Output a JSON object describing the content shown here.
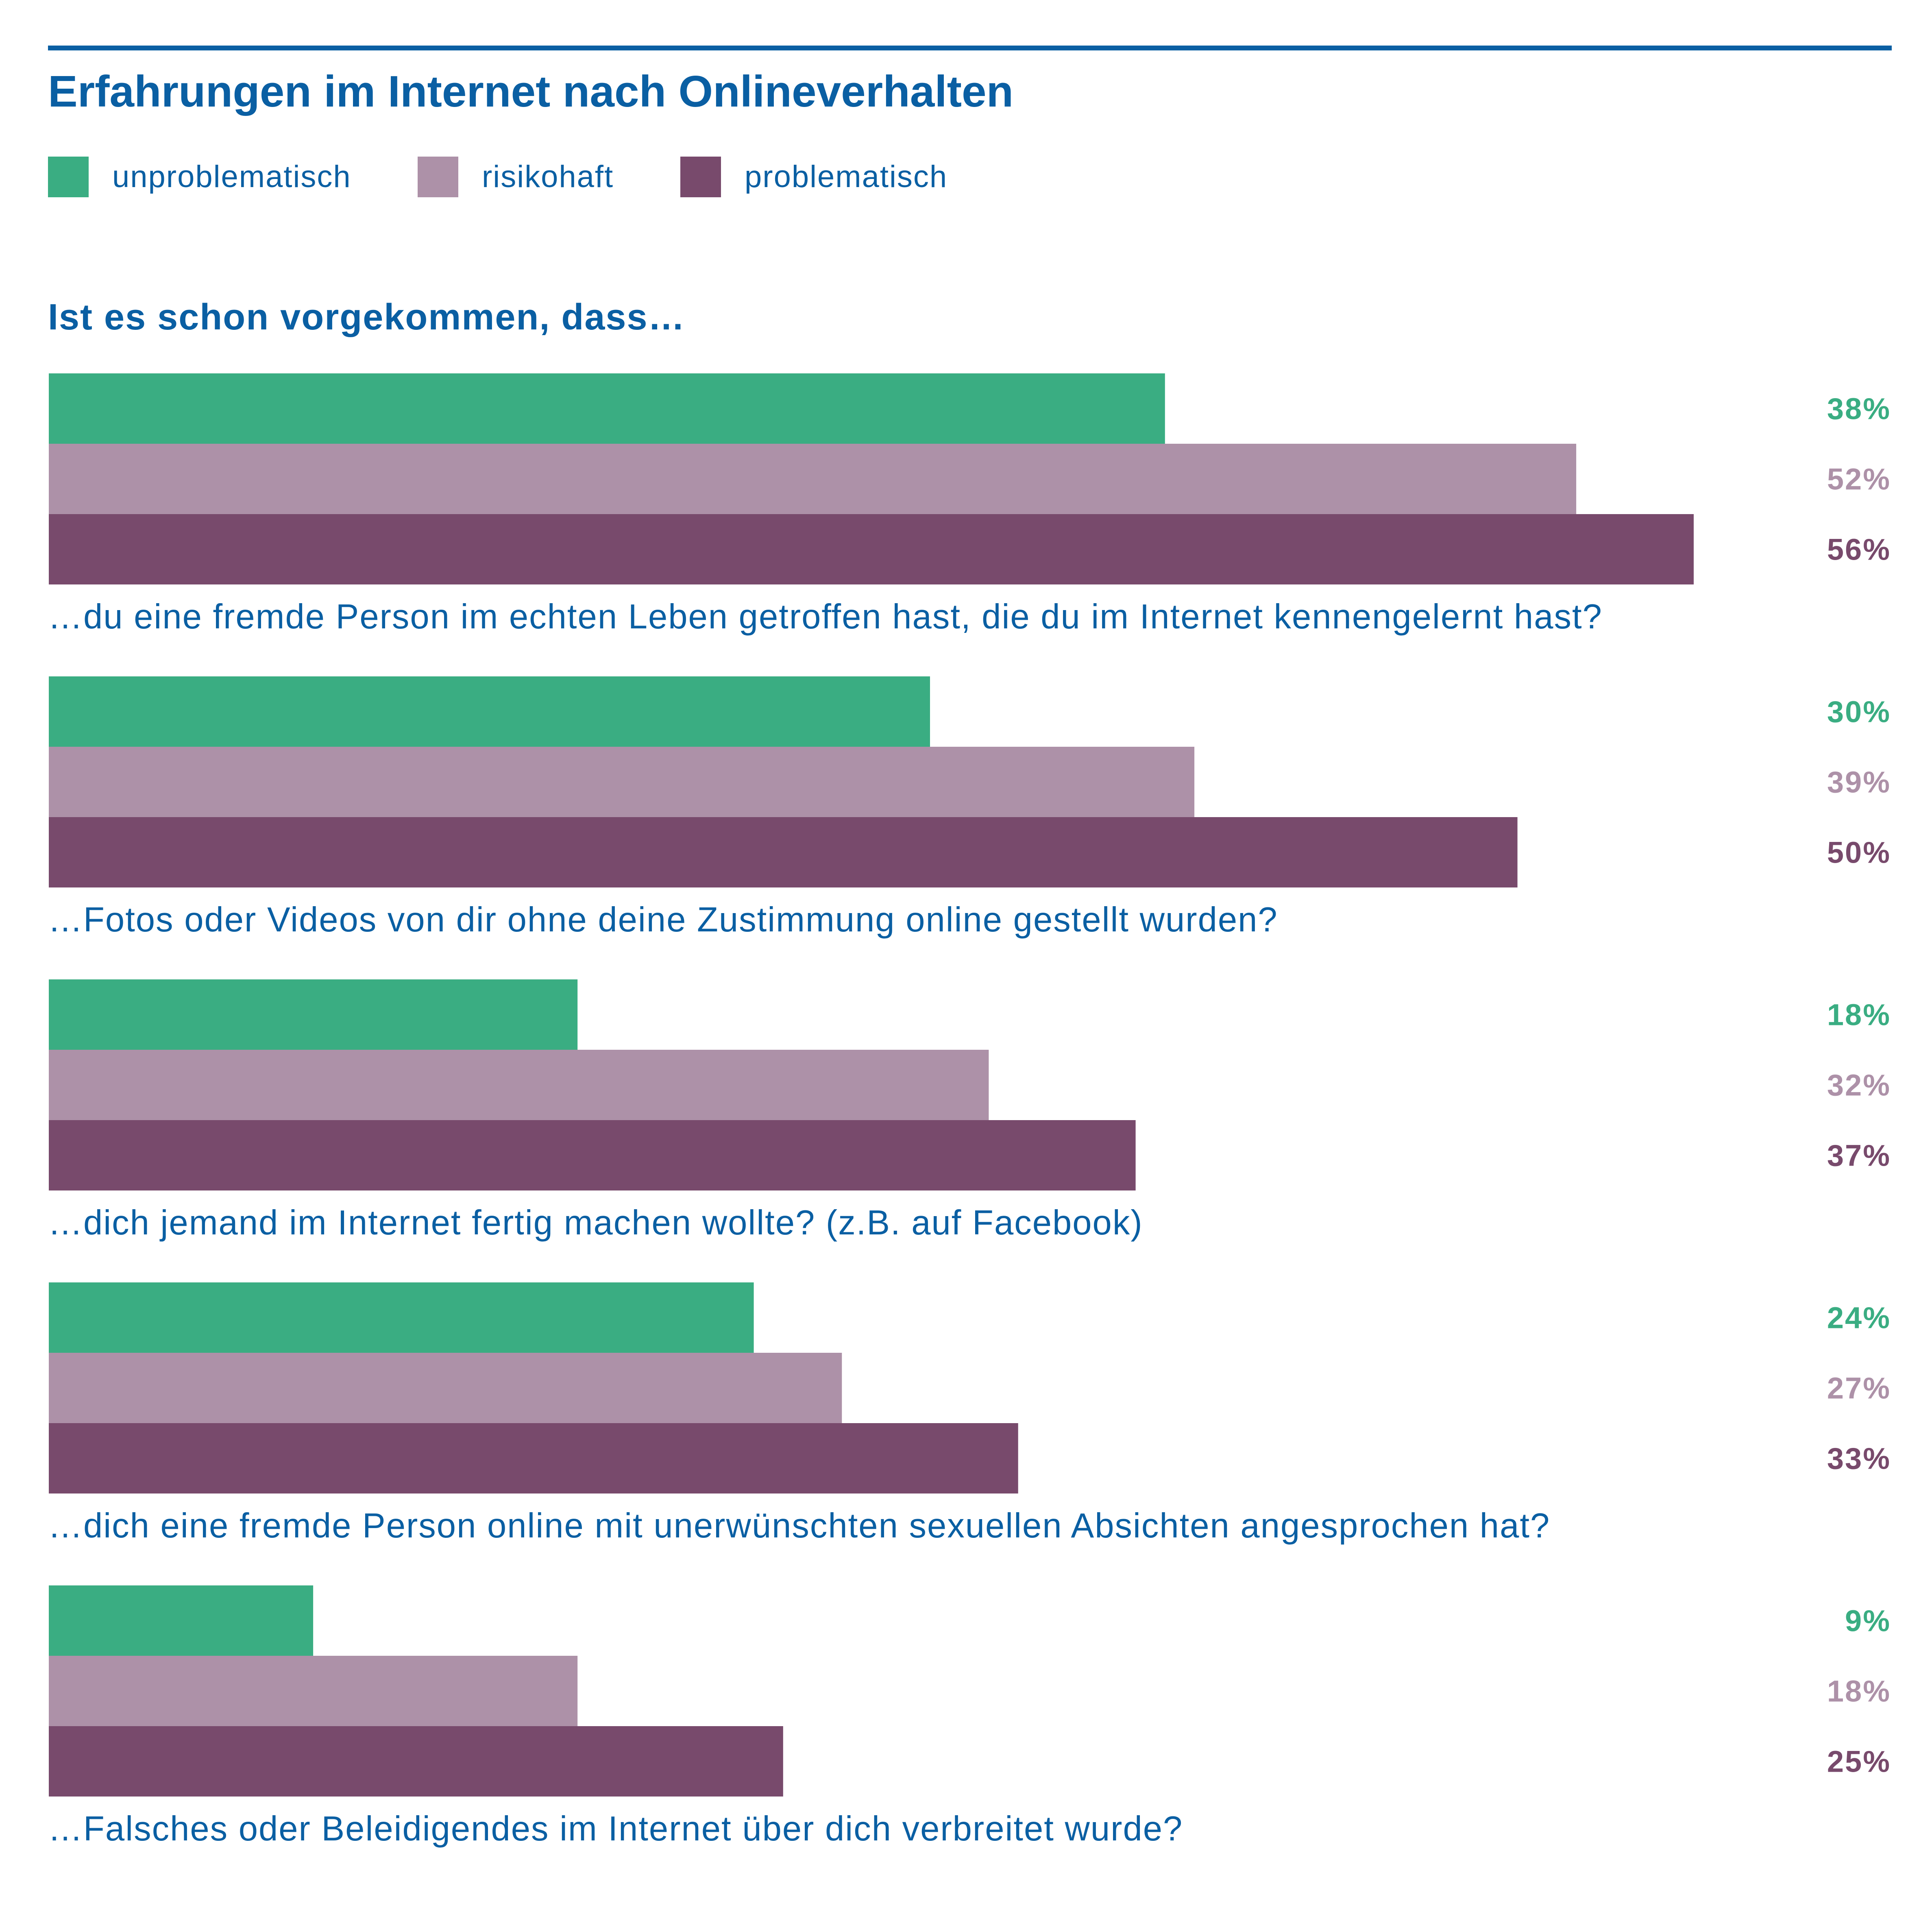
{
  "colors": {
    "accent": "#0a5fa3",
    "unproblematisch": "#3aad82",
    "risikohaft": "#ad91a8",
    "problematisch": "#784a6c"
  },
  "title": "Erfahrungen im Internet nach Onlineverhalten",
  "subtitle": "Ist es schon vorgekommen, dass…",
  "legend": [
    {
      "label": "unproblematisch",
      "color_key": "unproblematisch"
    },
    {
      "label": "risikohaft",
      "color_key": "risikohaft"
    },
    {
      "label": "problematisch",
      "color_key": "problematisch"
    }
  ],
  "chart_data": {
    "type": "bar",
    "orientation": "horizontal",
    "unit": "%",
    "xlim": [
      0,
      100
    ],
    "grid": false,
    "legend_position": "top-left",
    "title": "Erfahrungen im Internet nach Onlineverhalten",
    "subtitle": "Ist es schon vorgekommen, dass…",
    "categories": [
      "…du eine fremde Person im echten Leben getroffen hast, die du im Internet kennengelernt hast?",
      "…Fotos oder Videos von dir ohne deine Zustimmung online gestellt wurden?",
      "…dich jemand im Internet fertig machen wollte? (z.B. auf Facebook)",
      "…dich eine fremde Person online mit unerwünschten sexuellen Absichten angesprochen hat?",
      "…Falsches oder Beleidigendes im Internet über dich verbreitet wurde?"
    ],
    "series": [
      {
        "name": "unproblematisch",
        "values": [
          38,
          30,
          18,
          24,
          9
        ],
        "labels": [
          "38%",
          "30%",
          "18%",
          "24%",
          "9%"
        ]
      },
      {
        "name": "risikohaft",
        "values": [
          52,
          39,
          32,
          27,
          18
        ],
        "labels": [
          "52%",
          "39%",
          "32%",
          "27%",
          "18%"
        ]
      },
      {
        "name": "problematisch",
        "values": [
          56,
          50,
          37,
          33,
          25
        ],
        "labels": [
          "56%",
          "50%",
          "37%",
          "33%",
          "25%"
        ]
      }
    ]
  }
}
